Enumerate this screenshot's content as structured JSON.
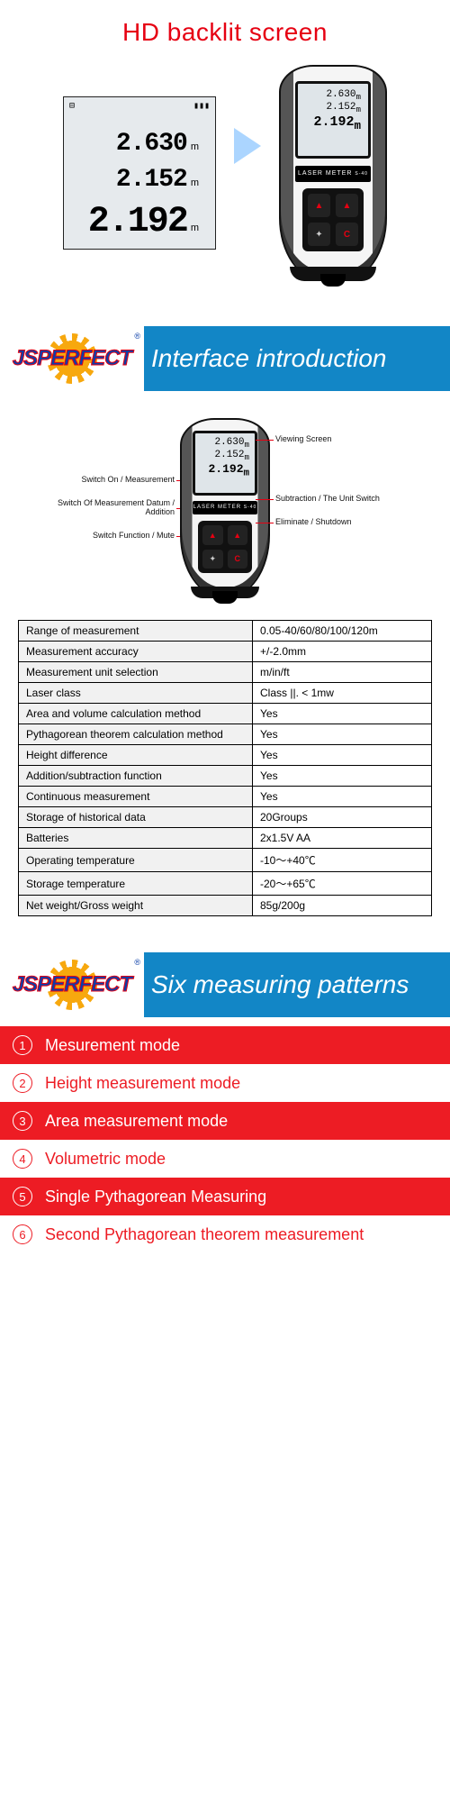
{
  "brand": "JSPERFECT",
  "device_label": "LASER METER",
  "device_model": "S-40",
  "sec1": {
    "title": "HD backlit screen",
    "lcd_icons_left": "⊟",
    "lcd_icons_right": "▮▮▮",
    "r1": "2.630",
    "r2": "2.152",
    "r3": "2.192",
    "unit": "m"
  },
  "banner1_title": "Interface introduction",
  "banner2_title": "Six measuring patterns",
  "callouts": {
    "left": [
      "Switch On / Measurement",
      "Switch Of Measurement Datum / Addition",
      "Switch Function / Mute"
    ],
    "right_top": "Viewing Screen",
    "right": [
      "Subtraction / The Unit Switch",
      "Eliminate / Shutdown"
    ]
  },
  "buttons": {
    "tl": "▲",
    "tr": "▲",
    "bl": "✦",
    "br": "C"
  },
  "spec_rows": [
    [
      "Range of measurement",
      "0.05-40/60/80/100/120m"
    ],
    [
      "Measurement accuracy",
      "+/-2.0mm"
    ],
    [
      "Measurement unit selection",
      "m/in/ft"
    ],
    [
      "Laser class",
      "Class ||. < 1mw"
    ],
    [
      "Area and volume calculation method",
      "Yes"
    ],
    [
      "Pythagorean theorem calculation method",
      "Yes"
    ],
    [
      "Height difference",
      "Yes"
    ],
    [
      "Addition/subtraction function",
      "Yes"
    ],
    [
      "Continuous measurement",
      "Yes"
    ],
    [
      "Storage of historical data",
      "20Groups"
    ],
    [
      "Batteries",
      "2x1.5V AA"
    ],
    [
      "Operating temperature",
      "-10～+40℃"
    ],
    [
      "Storage temperature",
      "-20～+65℃"
    ],
    [
      "Net weight/Gross weight",
      "85g/200g"
    ]
  ],
  "modes": [
    "Mesurement mode",
    "Height measurement mode",
    "Area measurement mode",
    "Volumetric mode",
    "Single Pythagorean Measuring",
    "Second Pythagorean theorem measurement"
  ],
  "mode_numerals": [
    "①",
    "②",
    "③",
    "④",
    "⑤",
    "⑥"
  ],
  "colors": {
    "accent_red": "#ed1c24",
    "title_red": "#e60012",
    "banner_blue": "#1286c6",
    "logo_blue": "#0a3ea8",
    "gear_orange": "#f7a80e"
  }
}
